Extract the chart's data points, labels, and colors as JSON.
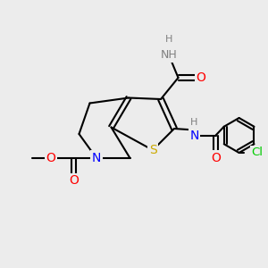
{
  "bg_color": "#ececec",
  "bond_color": "#000000",
  "atom_colors": {
    "N": "#0000ff",
    "O": "#ff0000",
    "S": "#ccaa00",
    "Cl": "#00cc00",
    "H": "#808080",
    "C": "#000000"
  },
  "font_size": 8.5,
  "fig_width": 3.0,
  "fig_height": 3.0
}
